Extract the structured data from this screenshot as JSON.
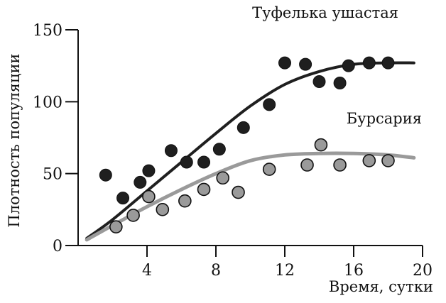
{
  "chart_data": {
    "type": "scatter",
    "title": "",
    "xlabel": "Время, сутки",
    "ylabel": "Плотность популяции",
    "xlim": [
      0,
      20
    ],
    "ylim": [
      0,
      150
    ],
    "x_ticks": [
      4,
      8,
      12,
      16,
      20
    ],
    "y_ticks": [
      0,
      50,
      100,
      150
    ],
    "grid": false,
    "legend": "none",
    "series": [
      {
        "name": "Туфелька ушастая",
        "color": "#1f1f1f",
        "points": [
          [
            1.6,
            49
          ],
          [
            2.6,
            33
          ],
          [
            3.6,
            44
          ],
          [
            4.1,
            52
          ],
          [
            5.4,
            66
          ],
          [
            6.3,
            58
          ],
          [
            7.3,
            58
          ],
          [
            8.2,
            67
          ],
          [
            9.6,
            82
          ],
          [
            11.1,
            98
          ],
          [
            12.0,
            127
          ],
          [
            13.2,
            126
          ],
          [
            14.0,
            114
          ],
          [
            15.2,
            113
          ],
          [
            15.7,
            125
          ],
          [
            16.9,
            127
          ],
          [
            18.0,
            127
          ]
        ],
        "curve": [
          [
            0.5,
            5
          ],
          [
            2,
            18
          ],
          [
            4,
            38
          ],
          [
            6,
            58
          ],
          [
            8,
            78
          ],
          [
            10,
            97
          ],
          [
            12,
            112
          ],
          [
            14,
            121
          ],
          [
            16,
            126
          ],
          [
            18,
            127
          ],
          [
            19.5,
            127
          ]
        ]
      },
      {
        "name": "Бурсария",
        "color": "#9a9a9a",
        "points": [
          [
            2.2,
            13
          ],
          [
            3.2,
            21
          ],
          [
            4.1,
            34
          ],
          [
            4.9,
            25
          ],
          [
            6.2,
            31
          ],
          [
            7.3,
            39
          ],
          [
            8.4,
            47
          ],
          [
            9.3,
            37
          ],
          [
            11.1,
            53
          ],
          [
            13.3,
            56
          ],
          [
            14.1,
            70
          ],
          [
            15.2,
            56
          ],
          [
            16.9,
            59
          ],
          [
            18.0,
            59
          ]
        ],
        "curve": [
          [
            0.5,
            4
          ],
          [
            2,
            14
          ],
          [
            4,
            27
          ],
          [
            6,
            39
          ],
          [
            8,
            50
          ],
          [
            10,
            59
          ],
          [
            12,
            63
          ],
          [
            14,
            64
          ],
          [
            16,
            64
          ],
          [
            18,
            63
          ],
          [
            19.5,
            61
          ]
        ]
      }
    ]
  }
}
